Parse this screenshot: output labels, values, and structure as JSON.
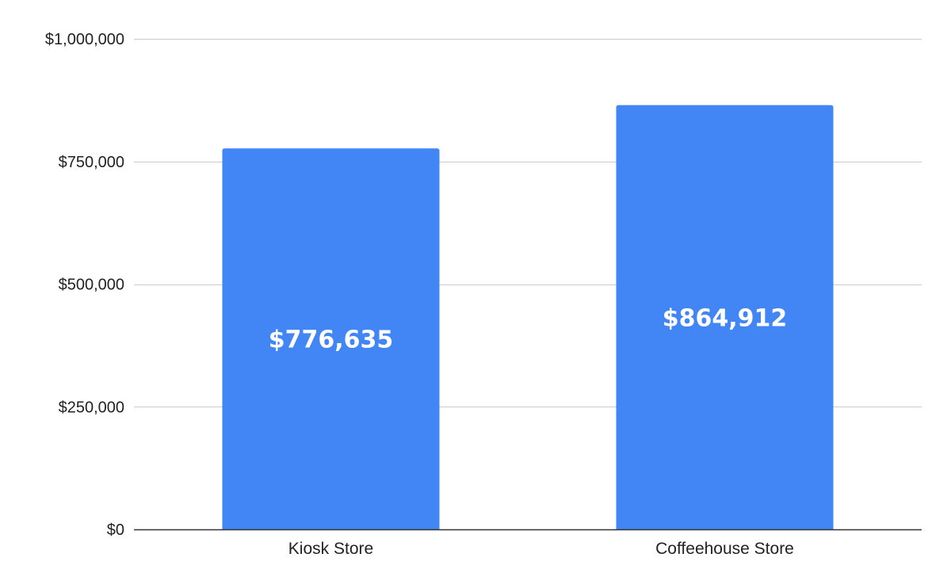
{
  "chart_data": {
    "type": "bar",
    "title": "",
    "xlabel": "",
    "ylabel": "",
    "categories": [
      "Kiosk Store",
      "Coffeehouse Store"
    ],
    "values": [
      776635,
      864912
    ],
    "data_labels": [
      "$776,635",
      "$864,912"
    ],
    "ylim": [
      0,
      1000000
    ],
    "y_ticks": [
      0,
      250000,
      500000,
      750000,
      1000000
    ],
    "y_tick_labels": [
      "$0",
      "$250,000",
      "$500,000",
      "$750,000",
      "$1,000,000"
    ],
    "grid": true,
    "legend": "none",
    "colors": {
      "bar": "#4285f4",
      "grid": "#cccccc",
      "axis": "#333333",
      "label_on_bar": "#ffffff"
    }
  }
}
